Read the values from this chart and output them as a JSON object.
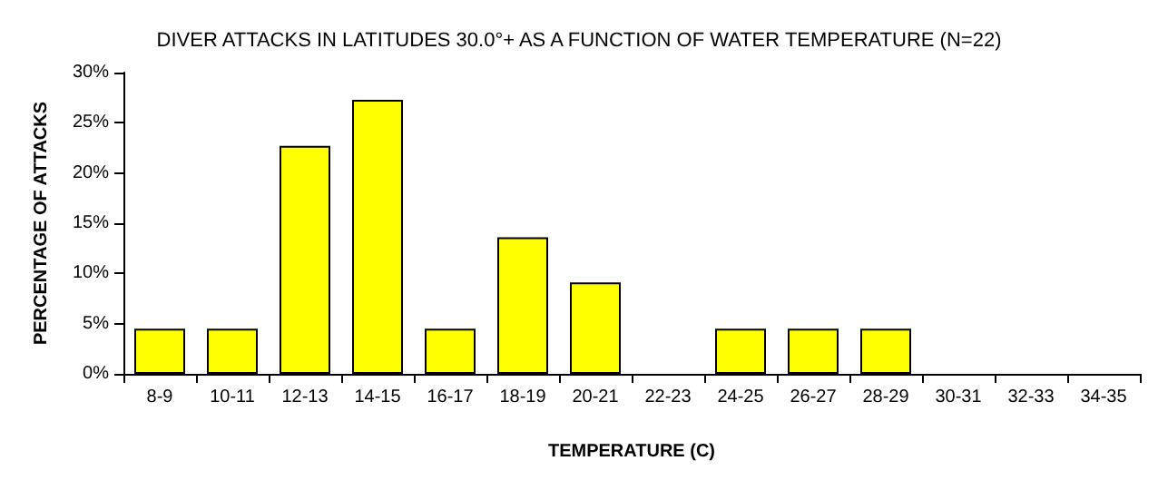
{
  "chart_data": {
    "type": "bar",
    "title": "DIVER ATTACKS IN LATITUDES 30.0°+ AS A FUNCTION OF WATER TEMPERATURE (N=22)",
    "xlabel": "TEMPERATURE (C)",
    "ylabel": "PERCENTAGE OF ATTACKS",
    "categories": [
      "8-9",
      "10-11",
      "12-13",
      "14-15",
      "16-17",
      "18-19",
      "20-21",
      "22-23",
      "24-25",
      "26-27",
      "28-29",
      "30-31",
      "32-33",
      "34-35"
    ],
    "values": [
      4.5,
      4.5,
      22.7,
      27.3,
      4.5,
      13.6,
      9.1,
      0,
      4.5,
      4.5,
      4.5,
      0,
      0,
      0
    ],
    "color": "#ffff00",
    "ylim": [
      0,
      30
    ],
    "yticks": [
      {
        "value": 0,
        "label": "0%"
      },
      {
        "value": 5,
        "label": "5%"
      },
      {
        "value": 10,
        "label": "10%"
      },
      {
        "value": 15,
        "label": "15%"
      },
      {
        "value": 20,
        "label": "20%"
      },
      {
        "value": 25,
        "label": "25%"
      },
      {
        "value": 30,
        "label": "30%"
      }
    ],
    "grid": false
  }
}
